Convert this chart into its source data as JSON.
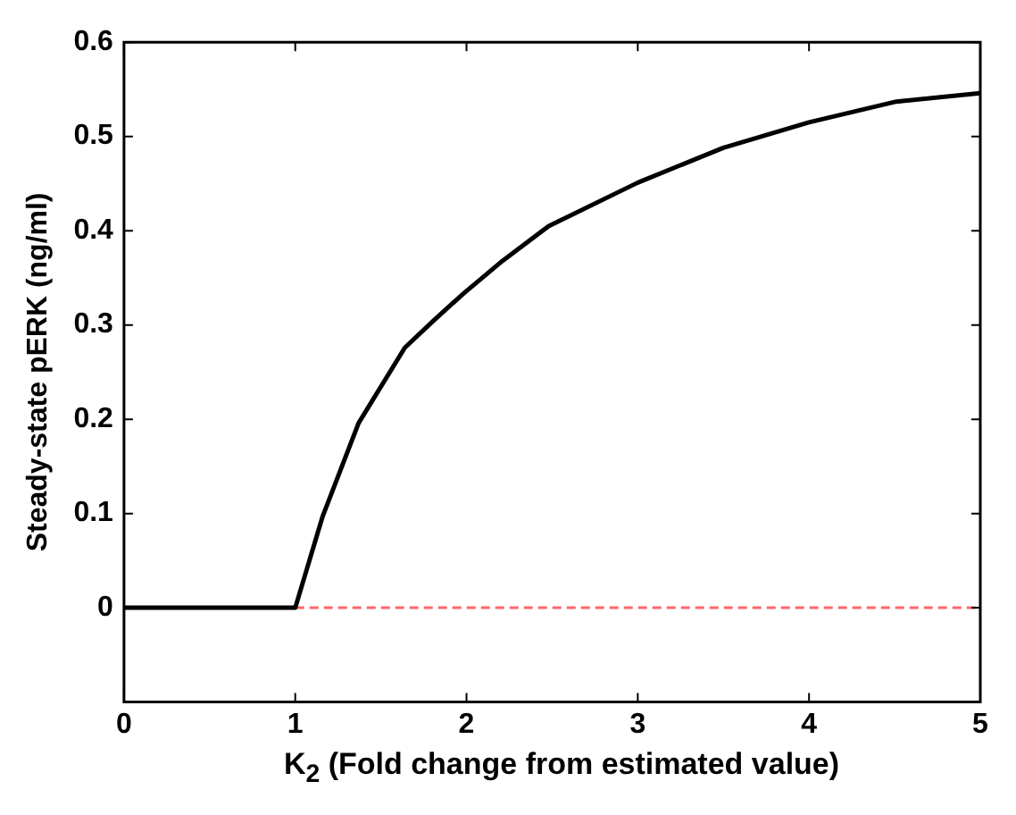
{
  "chart_data": {
    "type": "line",
    "xlabel": "K$_{2}$ (Fold change from estimated value)",
    "ylabel": "Steady-state pERK (ng/ml)",
    "xlim": [
      0,
      5
    ],
    "xticks": [
      0,
      1,
      2,
      3,
      4,
      5
    ],
    "ylim": [
      -0.1,
      0.6
    ],
    "yticks": [
      0,
      0.1,
      0.2,
      0.3,
      0.4,
      0.5,
      0.6
    ],
    "grid": false,
    "legend": false,
    "marker": "none",
    "series": [
      {
        "color": "#000000",
        "line_style": "solid",
        "x": [
          0,
          1,
          1.16,
          1.37,
          1.64,
          1.81,
          1.98,
          2.21,
          2.48,
          3,
          3.5,
          4,
          4.51,
          5
        ],
        "values": [
          0,
          0,
          0.097,
          0.196,
          0.276,
          0.305,
          0.333,
          0.368,
          0.405,
          0.451,
          0.488,
          0.515,
          0.537,
          0.546
        ]
      },
      {
        "color": "#ff6666",
        "line_style": "dashed",
        "x": [
          1,
          5
        ],
        "values": [
          0,
          0
        ]
      }
    ]
  }
}
